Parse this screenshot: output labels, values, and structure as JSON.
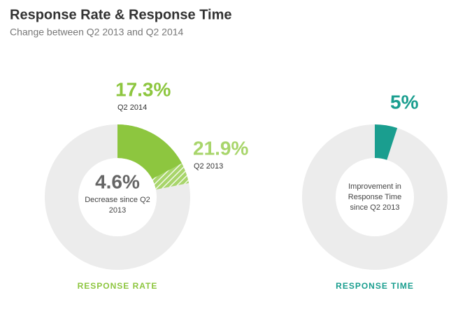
{
  "header": {
    "title": "Response Rate & Response Time",
    "subtitle": "Change between Q2 2013 and Q2 2014"
  },
  "chart_data": [
    {
      "type": "donut",
      "label": "RESPONSE RATE",
      "label_color": "#8dc63f",
      "ring_color": "#ececec",
      "series": [
        {
          "name": "Q2 2013",
          "color": "#a8d56b",
          "pattern": "hatch",
          "values": [
            21.9
          ],
          "value_labels": [
            "21.9%"
          ]
        },
        {
          "name": "Q2 2014",
          "color": "#8dc63f",
          "values": [
            17.3
          ],
          "value_labels": [
            "17.3%"
          ]
        }
      ],
      "center_label": "4.6%",
      "center_text": "Decrease since Q2 2013"
    },
    {
      "type": "donut",
      "label": "RESPONSE TIME",
      "label_color": "#1a9e8f",
      "ring_color": "#ececec",
      "series": [
        {
          "color": "#1a9e8f",
          "values": [
            5
          ],
          "value_labels": [
            "5%"
          ]
        }
      ],
      "center_text": "Improvement in Response Time since Q2 2013"
    }
  ]
}
